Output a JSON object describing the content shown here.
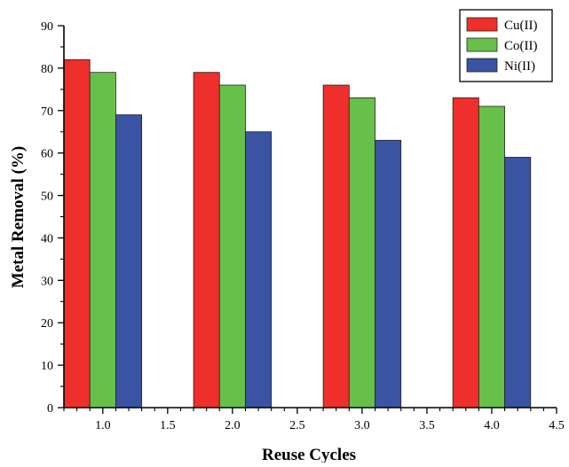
{
  "chart_data": {
    "type": "bar",
    "title": "",
    "xlabel": "Reuse Cycles",
    "ylabel": "Metal Removal (%)",
    "x": [
      1.0,
      2.0,
      3.0,
      4.0
    ],
    "xlim": [
      0.7,
      4.5
    ],
    "xticks": [
      "1.0",
      "1.5",
      "2.0",
      "2.5",
      "3.0",
      "3.5",
      "4.0",
      "4.5"
    ],
    "ylim": [
      0,
      90
    ],
    "yticks": [
      "0",
      "10",
      "20",
      "30",
      "40",
      "50",
      "60",
      "70",
      "80",
      "90"
    ],
    "grid": false,
    "legend_position": "top-right",
    "series": [
      {
        "name": "Cu(II)",
        "color": "#ee2f2b",
        "values": [
          82,
          79,
          76,
          73
        ]
      },
      {
        "name": "Co(II)",
        "color": "#67c04a",
        "values": [
          79,
          76,
          73,
          71
        ]
      },
      {
        "name": "Ni(II)",
        "color": "#3a53a3",
        "values": [
          69,
          65,
          63,
          59
        ]
      }
    ]
  }
}
